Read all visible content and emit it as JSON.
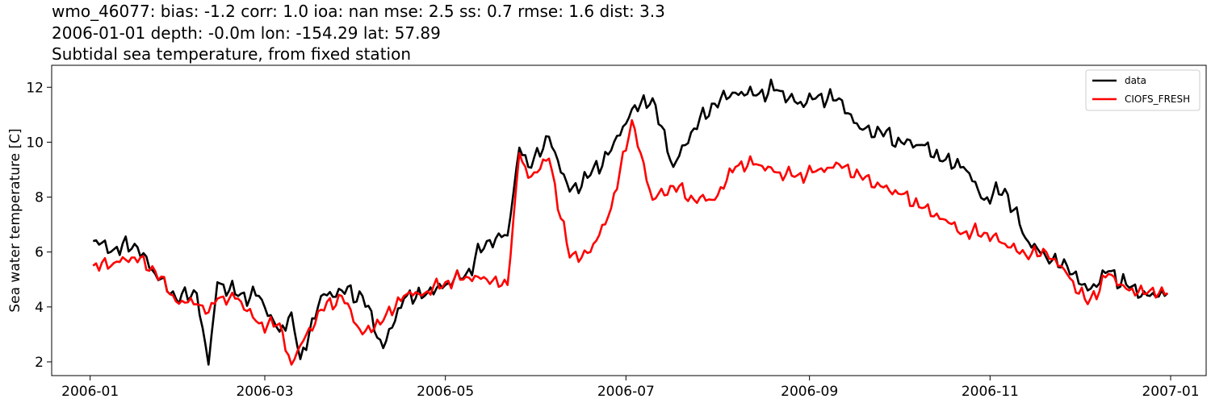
{
  "title": {
    "line1": "wmo_46077: bias: -1.2  corr: 1.0  ioa: nan  mse: 2.5  ss: 0.7  rmse: 1.6  dist: 3.3",
    "line2": "2006-01-01 depth: -0.0m lon: -154.29 lat: 57.89",
    "line3": "Subtidal sea temperature, from fixed station"
  },
  "chart_data": {
    "type": "line",
    "xlabel": "",
    "ylabel": "Sea water temperature [C]",
    "xlim": [
      "2005-12-19",
      "2007-01-13"
    ],
    "ylim": [
      1.5,
      12.8
    ],
    "grid": false,
    "legend_position": "top-right",
    "x_ticks": [
      "2006-01",
      "2006-03",
      "2006-05",
      "2006-07",
      "2006-09",
      "2006-11",
      "2007-01"
    ],
    "y_ticks": [
      2,
      4,
      6,
      8,
      10,
      12
    ],
    "x": [
      "2006-01-02",
      "2006-01-09",
      "2006-01-16",
      "2006-01-23",
      "2006-01-30",
      "2006-02-06",
      "2006-02-10",
      "2006-02-13",
      "2006-02-20",
      "2006-02-27",
      "2006-03-06",
      "2006-03-10",
      "2006-03-13",
      "2006-03-20",
      "2006-03-27",
      "2006-04-03",
      "2006-04-10",
      "2006-04-17",
      "2006-04-24",
      "2006-05-01",
      "2006-05-08",
      "2006-05-15",
      "2006-05-22",
      "2006-05-26",
      "2006-05-29",
      "2006-06-05",
      "2006-06-12",
      "2006-06-19",
      "2006-06-26",
      "2006-07-03",
      "2006-07-10",
      "2006-07-17",
      "2006-07-24",
      "2006-07-31",
      "2006-08-07",
      "2006-08-14",
      "2006-08-21",
      "2006-08-28",
      "2006-09-04",
      "2006-09-11",
      "2006-09-18",
      "2006-09-25",
      "2006-10-02",
      "2006-10-09",
      "2006-10-16",
      "2006-10-23",
      "2006-10-30",
      "2006-11-06",
      "2006-11-13",
      "2006-11-20",
      "2006-11-27",
      "2006-12-04",
      "2006-12-11",
      "2006-12-18",
      "2006-12-25",
      "2006-12-31"
    ],
    "series": [
      {
        "name": "data",
        "color": "#000000",
        "values": [
          6.4,
          6.1,
          6.3,
          5.2,
          4.3,
          4.5,
          1.9,
          4.9,
          4.4,
          4.4,
          3.1,
          3.8,
          2.1,
          4.4,
          4.6,
          4.4,
          2.5,
          4.3,
          4.4,
          4.8,
          5.2,
          6.4,
          6.6,
          9.8,
          9.1,
          10.2,
          8.2,
          8.8,
          9.7,
          11.2,
          11.6,
          9.1,
          10.5,
          11.4,
          11.8,
          11.7,
          11.9,
          11.4,
          11.7,
          11.6,
          10.5,
          10.4,
          10.0,
          9.9,
          9.3,
          9.1,
          7.9,
          8.3,
          6.5,
          5.8,
          5.5,
          4.6,
          5.3,
          4.7,
          4.4,
          4.5
        ]
      },
      {
        "name": "CIOFS_FRESH",
        "color": "#ff0000",
        "values": [
          5.5,
          5.6,
          5.8,
          5.3,
          4.2,
          4.1,
          3.8,
          4.3,
          4.3,
          3.4,
          3.4,
          1.9,
          2.6,
          3.9,
          4.4,
          3.0,
          3.5,
          4.4,
          4.5,
          4.9,
          5.1,
          5.0,
          4.8,
          9.6,
          8.7,
          9.4,
          5.8,
          6.0,
          7.6,
          10.8,
          7.9,
          8.4,
          7.9,
          7.9,
          9.1,
          9.2,
          8.9,
          8.8,
          9.0,
          9.2,
          8.8,
          8.4,
          8.1,
          7.6,
          7.2,
          6.7,
          6.7,
          6.3,
          5.9,
          6.0,
          5.2,
          4.1,
          5.2,
          4.6,
          4.6,
          4.5
        ]
      }
    ]
  }
}
